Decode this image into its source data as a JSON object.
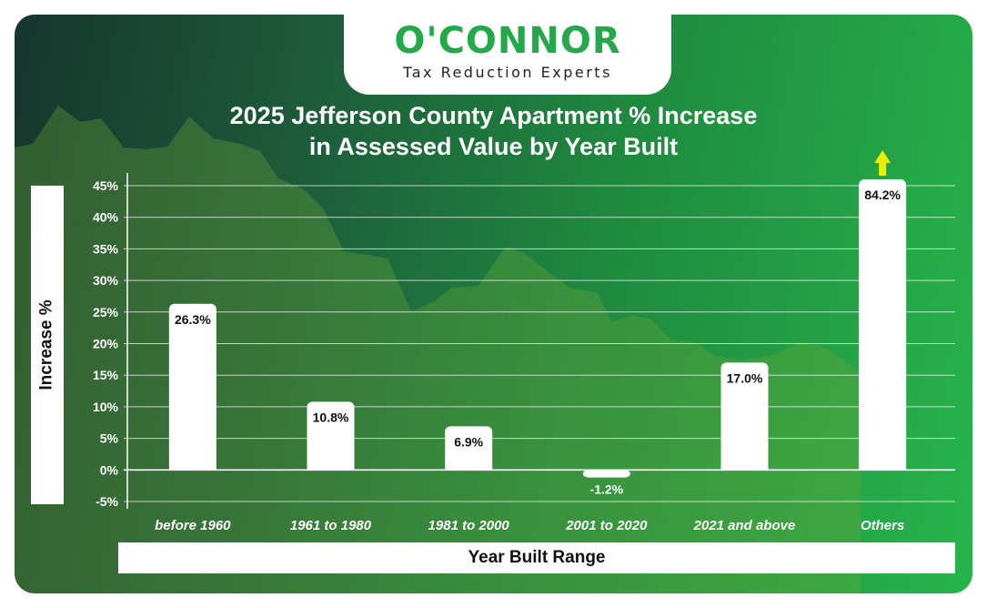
{
  "brand": {
    "name": "O'CONNOR",
    "tagline": "Tax Reduction Experts",
    "accent": "#23a84a"
  },
  "chart_data": {
    "type": "bar",
    "title_line1": "2025 Jefferson County Apartment % Increase",
    "title_line2": "in Assessed Value by Year Built",
    "xlabel": "Year Built Range",
    "ylabel": "Increase %",
    "categories": [
      "before 1960",
      "1961 to 1980",
      "1981 to 2000",
      "2001 to 2020",
      "2021 and above",
      "Others"
    ],
    "values": [
      26.3,
      10.8,
      6.9,
      -1.2,
      17.0,
      84.2
    ],
    "data_labels": [
      "26.3%",
      "10.8%",
      "6.9%",
      "-1.2%",
      "17.0%",
      "84.2%"
    ],
    "y_ticks": [
      45,
      40,
      35,
      30,
      25,
      20,
      15,
      10,
      5,
      0,
      -5
    ],
    "y_tick_labels": [
      "45%",
      "40%",
      "35%",
      "30%",
      "25%",
      "20%",
      "15%",
      "10%",
      "5%",
      "0%",
      "-5%"
    ],
    "ylim": [
      -5,
      45
    ],
    "grid": true,
    "bar_color": "#ffffff",
    "overflow_arrow_color": "#e8f000",
    "overflow_category": "Others"
  }
}
